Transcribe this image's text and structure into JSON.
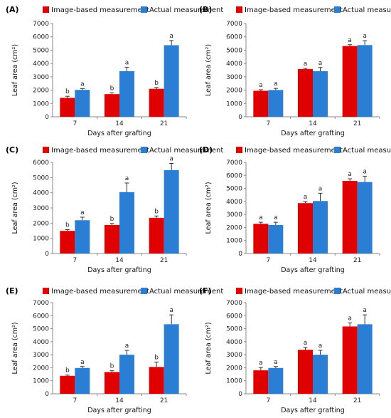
{
  "chart_data": [
    {
      "panel": "(A)",
      "type": "bar",
      "categories": [
        "7",
        "14",
        "21"
      ],
      "series": [
        {
          "name": "Image-based measurement",
          "color": "#e00000",
          "values": [
            1420,
            1700,
            2100
          ],
          "errors": [
            120,
            100,
            100
          ],
          "letters": [
            "b",
            "b",
            "b"
          ]
        },
        {
          "name": "Actual measurement",
          "color": "#2a7fd4",
          "values": [
            2020,
            3420,
            5370
          ],
          "errors": [
            100,
            300,
            350
          ],
          "letters": [
            "a",
            "a",
            "a"
          ]
        }
      ],
      "xlabel": "Days after grafting",
      "ylabel": "Leaf area (cm²)",
      "ylim": [
        0,
        7000
      ],
      "yticks": [
        "0",
        "1000",
        "2000",
        "3000",
        "4000",
        "5000",
        "6000",
        "7000"
      ]
    },
    {
      "panel": "(B)",
      "type": "bar",
      "categories": [
        "7",
        "14",
        "21"
      ],
      "series": [
        {
          "name": "Image-based measurement",
          "color": "#e00000",
          "values": [
            1950,
            3580,
            5310
          ],
          "errors": [
            80,
            50,
            100
          ],
          "letters": [
            "a",
            "a",
            "a"
          ]
        },
        {
          "name": "Actual measurement",
          "color": "#2a7fd4",
          "values": [
            2010,
            3420,
            5380
          ],
          "errors": [
            120,
            280,
            330
          ],
          "letters": [
            "a",
            "a",
            "a"
          ]
        }
      ],
      "xlabel": "Days after grafting",
      "ylabel": "Leaf area (cm²)",
      "ylim": [
        0,
        7000
      ],
      "yticks": [
        "0",
        "1000",
        "2000",
        "3000",
        "4000",
        "5000",
        "6000",
        "7000"
      ]
    },
    {
      "panel": "(C)",
      "type": "bar",
      "categories": [
        "7",
        "14",
        "21"
      ],
      "series": [
        {
          "name": "Image-based measurement",
          "color": "#e00000",
          "values": [
            1490,
            1880,
            2350
          ],
          "errors": [
            80,
            100,
            120
          ],
          "letters": [
            "b",
            "b",
            "b"
          ]
        },
        {
          "name": "Actual measurement",
          "color": "#2a7fd4",
          "values": [
            2190,
            4040,
            5490
          ],
          "errors": [
            200,
            600,
            440
          ],
          "letters": [
            "a",
            "a",
            "a"
          ]
        }
      ],
      "xlabel": "Days after grafting",
      "ylabel": "Leaf area (cm²)",
      "ylim": [
        0,
        6000
      ],
      "yticks": [
        "0",
        "1000",
        "2000",
        "3000",
        "4000",
        "5000",
        "6000"
      ]
    },
    {
      "panel": "(D)",
      "type": "bar",
      "categories": [
        "7",
        "14",
        "21"
      ],
      "series": [
        {
          "name": "Image-based measurement",
          "color": "#e00000",
          "values": [
            2280,
            3870,
            5580
          ],
          "errors": [
            120,
            120,
            160
          ],
          "letters": [
            "a",
            "a",
            "a"
          ]
        },
        {
          "name": "Actual measurement",
          "color": "#2a7fd4",
          "values": [
            2190,
            4030,
            5490
          ],
          "errors": [
            210,
            600,
            450
          ],
          "letters": [
            "a",
            "a",
            "a"
          ]
        }
      ],
      "xlabel": "Days after grafting",
      "ylabel": "Leaf area (cm²)",
      "ylim": [
        0,
        7000
      ],
      "yticks": [
        "0",
        "1000",
        "2000",
        "3000",
        "4000",
        "5000",
        "6000",
        "7000"
      ]
    },
    {
      "panel": "(E)",
      "type": "bar",
      "categories": [
        "7",
        "14",
        "21"
      ],
      "series": [
        {
          "name": "Image-based measurement",
          "color": "#e00000",
          "values": [
            1380,
            1670,
            2060
          ],
          "errors": [
            60,
            100,
            380
          ],
          "letters": [
            "b",
            "b",
            "b"
          ]
        },
        {
          "name": "Actual measurement",
          "color": "#2a7fd4",
          "values": [
            1980,
            3000,
            5340
          ],
          "errors": [
            110,
            330,
            720
          ],
          "letters": [
            "a",
            "a",
            "a"
          ]
        }
      ],
      "xlabel": "Days after grafting",
      "ylabel": "Leaf area (cm²)",
      "ylim": [
        0,
        7000
      ],
      "yticks": [
        "0",
        "1000",
        "2000",
        "3000",
        "4000",
        "5000",
        "6000",
        "7000"
      ]
    },
    {
      "panel": "(F)",
      "type": "bar",
      "categories": [
        "7",
        "14",
        "21"
      ],
      "series": [
        {
          "name": "Image-based measurement",
          "color": "#e00000",
          "values": [
            1800,
            3380,
            5170
          ],
          "errors": [
            220,
            180,
            270
          ],
          "letters": [
            "a",
            "a",
            "a"
          ]
        },
        {
          "name": "Actual measurement",
          "color": "#2a7fd4",
          "values": [
            1980,
            3000,
            5340
          ],
          "errors": [
            110,
            340,
            720
          ],
          "letters": [
            "a",
            "a",
            "a"
          ]
        }
      ],
      "xlabel": "Days after grafting",
      "ylabel": "Leaf area (cm²)",
      "ylim": [
        0,
        7000
      ],
      "yticks": [
        "0",
        "1000",
        "2000",
        "3000",
        "4000",
        "5000",
        "6000",
        "7000"
      ]
    }
  ]
}
